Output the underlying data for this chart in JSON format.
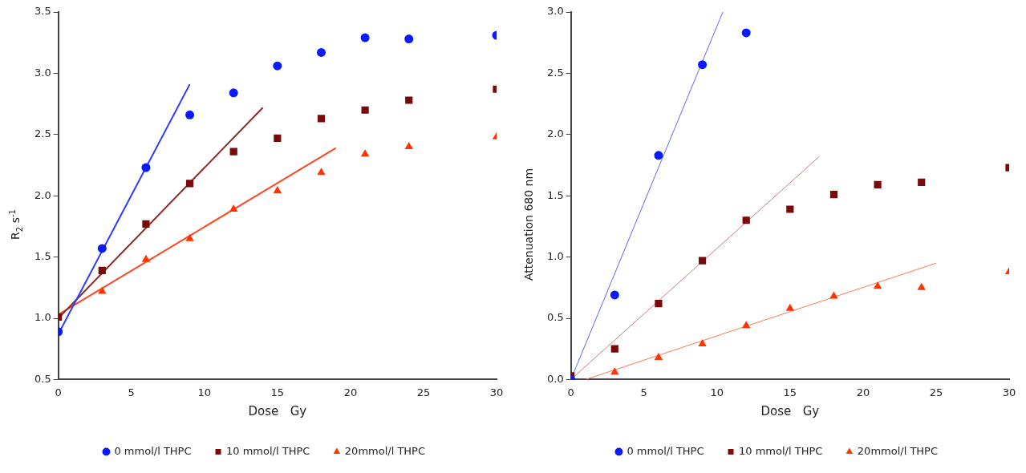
{
  "chart_data": [
    {
      "type": "scatter",
      "xlabel": "Dose   Gy",
      "ylabel": "R$_{2}$  s$^{-1}$",
      "x": [
        0,
        3,
        6,
        9,
        12,
        15,
        18,
        21,
        24,
        30
      ],
      "xlim": [
        0,
        30
      ],
      "xticks": [
        0,
        5,
        10,
        15,
        20,
        25,
        30
      ],
      "ylim": [
        0.5,
        3.5
      ],
      "yticks": [
        {
          "value": 0.5,
          "label": "0.5"
        },
        {
          "value": 1,
          "label": "1.0"
        },
        {
          "value": 1.5,
          "label": "1.5"
        },
        {
          "value": 2,
          "label": "2.0"
        },
        {
          "value": 2.5,
          "label": "2.5"
        },
        {
          "value": 3,
          "label": "3.0"
        },
        {
          "value": 3.5,
          "label": "3.5"
        }
      ],
      "grid": false,
      "legend": "bottom",
      "series": [
        {
          "name": "0 mmol/l THPC",
          "color": "#0a1aff",
          "marker": "circle",
          "values": [
            0.89,
            1.57,
            2.23,
            2.66,
            2.84,
            3.06,
            3.17,
            3.29,
            3.28,
            3.31
          ]
        },
        {
          "name": "10 mmol/l THPC",
          "color": "#7a0a0a",
          "marker": "square",
          "values": [
            1.01,
            1.39,
            1.77,
            2.1,
            2.36,
            2.47,
            2.63,
            2.7,
            2.78,
            2.87
          ]
        },
        {
          "name": "20mmol/l THPC",
          "color": "#ff3300",
          "marker": "triangle",
          "values": [
            null,
            1.22,
            1.48,
            1.65,
            1.89,
            2.04,
            2.19,
            2.34,
            2.4,
            2.48
          ]
        },
        {
          "type": "line",
          "color": "#2a3aff",
          "marker": "none",
          "x": [
            0,
            9
          ],
          "values": [
            0.87,
            2.91
          ]
        },
        {
          "type": "line",
          "color": "#8b2a2a",
          "marker": "none",
          "x": [
            0,
            14
          ],
          "values": [
            1,
            2.72
          ]
        },
        {
          "type": "line",
          "color": "#ff4422",
          "marker": "none",
          "x": [
            0,
            19
          ],
          "values": [
            1.03,
            2.39
          ]
        }
      ]
    },
    {
      "type": "scatter",
      "xlabel": "Dose   Gy",
      "ylabel": "Attenuation 680 nm",
      "x": [
        0,
        3,
        6,
        9,
        12,
        15,
        18,
        21,
        24,
        30
      ],
      "xlim": [
        0,
        30
      ],
      "xticks": [
        0,
        5,
        10,
        15,
        20,
        25,
        30
      ],
      "ylim": [
        0,
        3
      ],
      "yticks": [
        {
          "value": 0,
          "label": "0.0"
        },
        {
          "value": 0.5,
          "label": "0.5"
        },
        {
          "value": 1,
          "label": "1.0"
        },
        {
          "value": 1.5,
          "label": "1.5"
        },
        {
          "value": 2,
          "label": "2.0"
        },
        {
          "value": 2.5,
          "label": "2.5"
        },
        {
          "value": 3,
          "label": "3.0"
        }
      ],
      "grid": false,
      "legend": "bottom",
      "series": [
        {
          "name": "0 mmol/l THPC",
          "color": "#0a1aff",
          "marker": "circle",
          "x": [
            0,
            3,
            6,
            9,
            12
          ],
          "values": [
            0,
            0.69,
            1.83,
            2.57,
            2.83
          ]
        },
        {
          "name": "10 mmol/l THPC",
          "color": "#7a0a0a",
          "marker": "square",
          "values": [
            0.03,
            0.25,
            0.62,
            0.97,
            1.3,
            1.39,
            1.51,
            1.59,
            1.61,
            1.73
          ]
        },
        {
          "name": "20mmol/l THPC",
          "color": "#ff3300",
          "marker": "triangle",
          "values": [
            0,
            0.06,
            0.18,
            0.29,
            0.44,
            0.58,
            0.68,
            0.76,
            0.75,
            0.88
          ]
        },
        {
          "type": "line",
          "color": "#5a6aff",
          "marker": "none",
          "x": [
            0,
            10.4
          ],
          "values": [
            0,
            3
          ]
        },
        {
          "type": "line",
          "color": "#c08080",
          "marker": "none",
          "x": [
            0,
            17
          ],
          "values": [
            0,
            1.82
          ]
        },
        {
          "type": "line",
          "color": "#ff7755",
          "marker": "none",
          "x": [
            1,
            25
          ],
          "values": [
            0,
            0.95
          ]
        }
      ]
    }
  ]
}
